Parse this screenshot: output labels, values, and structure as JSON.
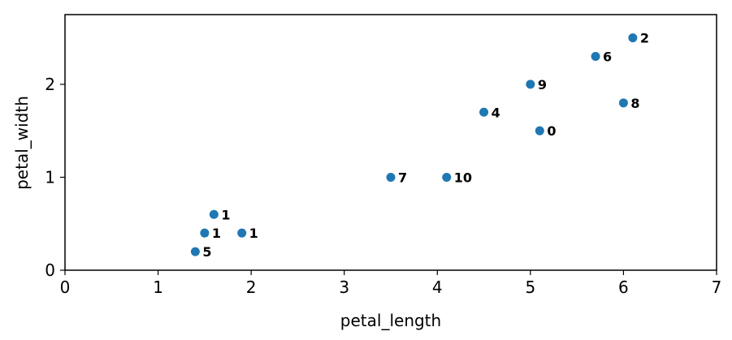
{
  "chart_data": {
    "type": "scatter",
    "title": "",
    "xlabel": "petal_length",
    "ylabel": "petal_width",
    "xlim": [
      0,
      7
    ],
    "ylim": [
      0,
      2.75
    ],
    "xticks": [
      0,
      1,
      2,
      3,
      4,
      5,
      6,
      7
    ],
    "yticks": [
      0,
      1,
      2
    ],
    "grid": false,
    "marker_color": "#1f77b4",
    "points": [
      {
        "x": 5.1,
        "y": 1.5,
        "label": "0"
      },
      {
        "x": 1.6,
        "y": 0.6,
        "label": "1"
      },
      {
        "x": 1.5,
        "y": 0.4,
        "label": "1"
      },
      {
        "x": 1.9,
        "y": 0.4,
        "label": "1"
      },
      {
        "x": 6.1,
        "y": 2.5,
        "label": "2"
      },
      {
        "x": 4.5,
        "y": 1.7,
        "label": "4"
      },
      {
        "x": 1.4,
        "y": 0.2,
        "label": "5"
      },
      {
        "x": 5.7,
        "y": 2.3,
        "label": "6"
      },
      {
        "x": 3.5,
        "y": 1.0,
        "label": "7"
      },
      {
        "x": 6.0,
        "y": 1.8,
        "label": "8"
      },
      {
        "x": 5.0,
        "y": 2.0,
        "label": "9"
      },
      {
        "x": 4.1,
        "y": 1.0,
        "label": "10"
      }
    ]
  }
}
